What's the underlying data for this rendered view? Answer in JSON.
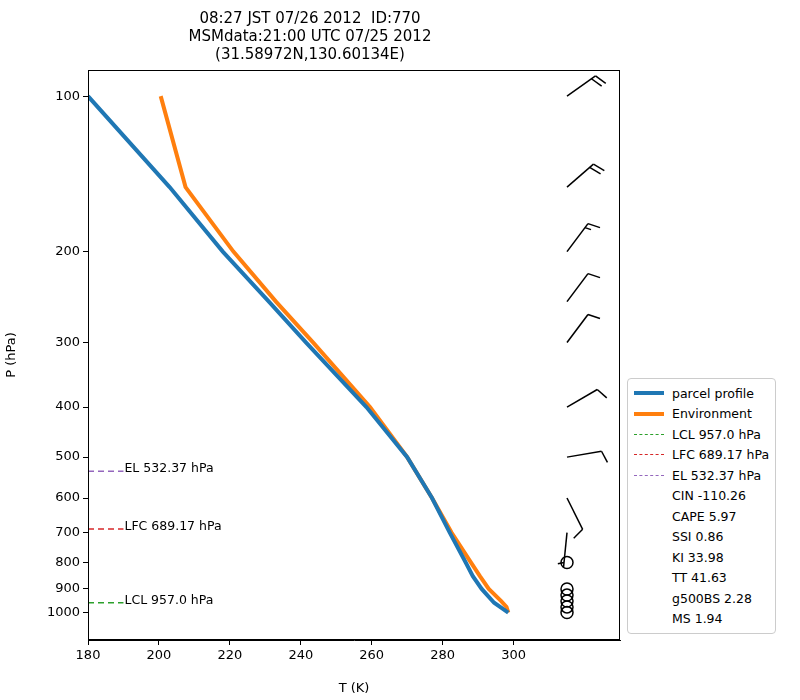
{
  "chart_data": {
    "type": "line",
    "title": [
      "08:27 JST 07/26 2012  ID:770",
      "MSMdata:21:00 UTC 07/25 2012",
      "(31.58972N,130.60134E)"
    ],
    "x_label": "T (K)",
    "y_label": "P (hPa)",
    "xlim": [
      180,
      330
    ],
    "xticks": [
      180,
      200,
      220,
      240,
      260,
      280,
      300
    ],
    "ylim": [
      1130,
      89
    ],
    "yticks": [
      100,
      200,
      300,
      400,
      500,
      600,
      700,
      800,
      900,
      1000
    ],
    "log": "y",
    "grid": false,
    "legend": "lower right",
    "series": [
      {
        "name": "parcel profile",
        "color": "#1f77b4",
        "line_style": "solid",
        "x": [
          180.0,
          203.0,
          218.0,
          231.0,
          241.5,
          258.5,
          270.0,
          277.0,
          282.0,
          286.5,
          288.5,
          291.0,
          294.5,
          298.5
        ],
        "values": [
          100,
          150,
          200,
          250,
          300,
          400,
          500,
          600,
          700,
          800,
          850,
          900,
          957,
          1000
        ]
      },
      {
        "name": "Environment",
        "color": "#ff7f0e",
        "line_style": "solid",
        "x": [
          200.5,
          207.5,
          221.0,
          233.0,
          243.5,
          259.5,
          270.0,
          277.0,
          282.5,
          288.0,
          290.5,
          293.0,
          296.5,
          298.0,
          298.5
        ],
        "values": [
          100,
          150,
          200,
          250,
          300,
          400,
          500,
          600,
          700,
          800,
          850,
          900,
          950,
          975,
          1000
        ]
      },
      {
        "name": "LCL 957.0 hPa",
        "color": "#2ca02c",
        "line_style": "dashed",
        "x": [
          180,
          190
        ],
        "values": [
          957.0,
          957.0
        ]
      },
      {
        "name": "LFC 689.17 hPa",
        "color": "#d62728",
        "line_style": "dashed",
        "x": [
          180,
          190
        ],
        "values": [
          689.17,
          689.17
        ]
      },
      {
        "name": "EL 532.37 hPa",
        "color": "#9467bd",
        "line_style": "dashed",
        "x": [
          180,
          190
        ],
        "values": [
          532.37,
          532.37
        ]
      }
    ],
    "annotations": [
      "CIN -110.26",
      "CAPE 5.97",
      "SSI 0.86",
      "KI 33.98",
      "TT 41.63",
      "g500BS 2.28",
      "MS 1.94"
    ],
    "wind": {
      "p": [
        100,
        150,
        200,
        250,
        300,
        400,
        500,
        600,
        700,
        800,
        900,
        925,
        950,
        975,
        1000
      ],
      "u": [
        -16.3,
        -15.0,
        -9.0,
        -6.0,
        -6.0,
        -8.6,
        -10.0,
        -3.5,
        0.5,
        0,
        0,
        0,
        0,
        0,
        0
      ],
      "v": [
        -11.6,
        -13.0,
        -12.0,
        -8.0,
        -8.0,
        -5.0,
        -1.7,
        7.0,
        5.0,
        0,
        0,
        0,
        0,
        0,
        0
      ]
    }
  }
}
